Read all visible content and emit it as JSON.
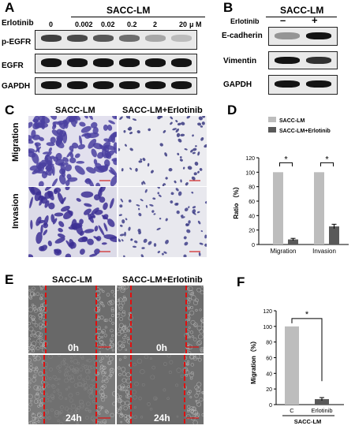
{
  "panels": {
    "A": {
      "letter": "A",
      "title": "SACC-LM",
      "treatment_label": "Erlotinib",
      "doses": [
        "0",
        "0.002",
        "0.02",
        "0.2",
        "2",
        "20"
      ],
      "unit": "μ M",
      "rows": [
        "p-EGFR",
        "EGFR",
        "GAPDH"
      ],
      "band_intensity": {
        "p-EGFR": [
          0.85,
          0.8,
          0.75,
          0.65,
          0.35,
          0.2
        ],
        "EGFR": [
          1.0,
          1.0,
          1.0,
          1.0,
          1.0,
          1.0
        ],
        "GAPDH": [
          1.0,
          1.0,
          1.0,
          1.0,
          1.0,
          1.0
        ]
      }
    },
    "B": {
      "letter": "B",
      "title": "SACC-LM",
      "treatment_label": "Erlotinib",
      "lanes": [
        "–",
        "+"
      ],
      "rows": [
        "E-cadherin",
        "Vimentin",
        "GAPDH"
      ],
      "band_intensity": {
        "E-cadherin": [
          0.45,
          1.0
        ],
        "Vimentin": [
          1.0,
          0.9
        ],
        "GAPDH": [
          1.0,
          1.0
        ]
      }
    },
    "C": {
      "letter": "C",
      "col_labels": [
        "SACC-LM",
        "SACC-LM+Erlotinib"
      ],
      "row_labels": [
        "Migration",
        "Invasion"
      ]
    },
    "E": {
      "letter": "E",
      "col_labels": [
        "SACC-LM",
        "SACC-LM+Erlotinib"
      ],
      "time_labels": [
        "0h",
        "0h",
        "24h",
        "24h"
      ]
    }
  },
  "chart_data": [
    {
      "panel": "D",
      "type": "bar",
      "categories": [
        "Migration",
        "Invasion"
      ],
      "series": [
        {
          "name": "SACC-LM",
          "values": [
            100,
            100
          ],
          "error": [
            0,
            0
          ],
          "color": "#bdbdbd"
        },
        {
          "name": "SACC-LM+Erlotinib",
          "values": [
            7,
            25
          ],
          "error": [
            1.5,
            3
          ],
          "color": "#595959"
        }
      ],
      "ylabel": "Ratio （%）",
      "ylim": [
        0,
        120
      ],
      "yticks": [
        0,
        20,
        40,
        60,
        80,
        100,
        120
      ],
      "significance": [
        "*",
        "*"
      ],
      "legend": "top-left"
    },
    {
      "panel": "F",
      "type": "bar",
      "categories": [
        "C",
        "Erlotinib"
      ],
      "values": [
        100,
        7
      ],
      "error": [
        0,
        2
      ],
      "colors": [
        "#bdbdbd",
        "#595959"
      ],
      "ylabel": "Migration（%）",
      "xlabel": "SACC-LM",
      "ylim": [
        0,
        120
      ],
      "yticks": [
        0,
        20,
        40,
        60,
        80,
        100,
        120
      ],
      "significance": "*"
    }
  ]
}
